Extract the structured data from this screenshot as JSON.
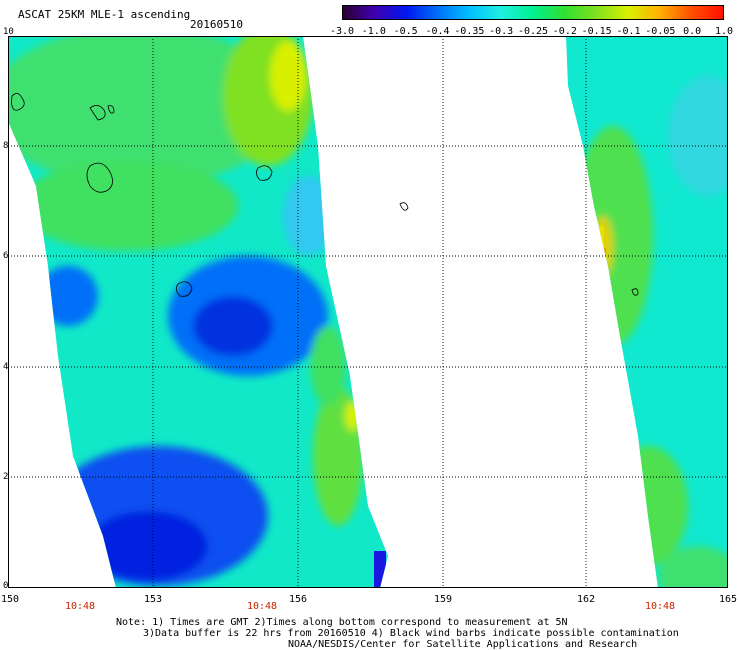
{
  "header": {
    "title": "ASCAT 25KM MLE-1 ascending",
    "date": "20160510"
  },
  "colorbar": {
    "labels": [
      "-3.0",
      "-1.0",
      "-0.5",
      "-0.4",
      "-0.35",
      "-0.3",
      "-0.25",
      "-0.2",
      "-0.15",
      "-0.1",
      "-0.05",
      "0.0",
      "1.0"
    ],
    "colors": [
      "#2a0030",
      "#4000b0",
      "#0018f0",
      "#0070f8",
      "#00c0ff",
      "#20f0e0",
      "#00f090",
      "#30e030",
      "#80e020",
      "#d8f000",
      "#ffb000",
      "#ff5000",
      "#ff1000"
    ]
  },
  "map": {
    "lon_labels": [
      "150",
      "153",
      "156",
      "159",
      "162",
      "165"
    ],
    "lat_labels": [
      "10",
      "8",
      "6",
      "4",
      "2",
      "0"
    ],
    "gmt_labels": [
      "10:48",
      "10:48",
      "10:48"
    ]
  },
  "notes": {
    "line1": "Note: 1) Times are GMT 2)Times along bottom correspond to measurement at 5N",
    "line2": "3)Data buffer is 22 hrs from 20160510 4) Black wind barbs indicate possible contamination",
    "line3": "NOAA/NESDIS/Center for Satellite Applications and Research"
  }
}
